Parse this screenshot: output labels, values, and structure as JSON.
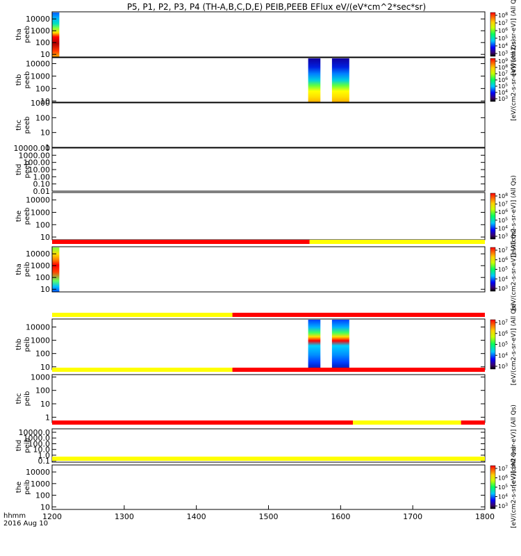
{
  "chart_data": {
    "type": "heatmap",
    "title": "P5, P1, P2, P3, P4 (TH-A,B,C,D,E) PEIB,PEEB EFlux eV/(eV*cm^2*sec*sr)",
    "x_ticks": [
      1200,
      1300,
      1400,
      1500,
      1600,
      1700,
      1800
    ],
    "x_range": [
      1200,
      1800
    ],
    "x_label_line1": "hhmm",
    "x_label_line2": "2016 Aug 10",
    "panels": [
      {
        "id": "tha-peeb",
        "label_line1": "tha",
        "label_line2": "peeb",
        "ylog": true,
        "ylim": [
          6,
          40000
        ],
        "y_ticks": [
          "10000",
          "1000",
          "100",
          "10"
        ],
        "y_tick_values": [
          10000,
          1000,
          100,
          10
        ],
        "data_blocks": [
          {
            "x_start": 1200,
            "x_end": 1210,
            "profile": "tha_peeb"
          }
        ],
        "colorbar": {
          "ticks": [
            "10^8",
            "10^7",
            "10^6",
            "10^5",
            "10^4",
            "10^3"
          ],
          "label": "[eV/(cm2-s-sr-eV)] (All Qs)"
        }
      },
      {
        "id": "thb-peeb",
        "label_line1": "thb",
        "label_line2": "peeb",
        "ylog": true,
        "ylim": [
          8,
          30000
        ],
        "y_ticks": [
          "10000",
          "1000",
          "100",
          "10"
        ],
        "y_tick_values": [
          10000,
          1000,
          100,
          10
        ],
        "data_blocks": [
          {
            "x_start": 1555,
            "x_end": 1572,
            "profile": "thb_peeb"
          },
          {
            "x_start": 1588,
            "x_end": 1612,
            "profile": "thb_peeb"
          }
        ],
        "colorbar": {
          "ticks": [
            "10^9",
            "10^8",
            "10^7",
            "10^6",
            "10^5",
            "10^4",
            "10^3"
          ],
          "label": "[eV/(cm2-s-sr-eV)] (All Qs)"
        }
      },
      {
        "id": "thc-peeb",
        "label_line1": "thc",
        "label_line2": "peeb",
        "ylog": true,
        "ylim": [
          1,
          1000
        ],
        "y_ticks": [
          "1000",
          "100",
          "10",
          "1"
        ],
        "y_tick_values": [
          1000,
          100,
          10,
          1
        ],
        "data_blocks": []
      },
      {
        "id": "thd-peeb",
        "label_line1": "thd",
        "label_line2": "peeb",
        "ylog": true,
        "ylim": [
          0.01,
          10000
        ],
        "y_ticks": [
          "10000.00",
          "1000.00",
          "100.00",
          "10.00",
          "1.00",
          "0.10",
          "0.01"
        ],
        "y_tick_values": [
          10000,
          1000,
          100,
          10,
          1,
          0.1,
          0.01
        ],
        "data_blocks": []
      },
      {
        "id": "the-peeb",
        "label_line1": "the",
        "label_line2": "peeb",
        "ylog": true,
        "ylim": [
          6,
          40000
        ],
        "y_ticks": [
          "10000",
          "1000",
          "100",
          "10"
        ],
        "y_tick_values": [
          10000,
          1000,
          100,
          10
        ],
        "data_blocks": [],
        "colorbar": {
          "ticks": [
            "10^8",
            "10^7",
            "10^6",
            "10^5",
            "10^4",
            "10^3"
          ],
          "label": "[eV/(cm2-s-sr-eV)] (All Qs)"
        },
        "mode_bar": [
          {
            "x_start": 1200,
            "x_end": 1557,
            "color": "#ff0000"
          },
          {
            "x_start": 1557,
            "x_end": 1800,
            "color": "#ffff00"
          }
        ]
      },
      {
        "id": "tha-peib",
        "label_line1": "tha",
        "label_line2": "peib",
        "ylog": true,
        "ylim": [
          6,
          40000
        ],
        "y_ticks": [
          "10000",
          "1000",
          "100",
          "10"
        ],
        "y_tick_values": [
          10000,
          1000,
          100,
          10
        ],
        "data_blocks": [
          {
            "x_start": 1200,
            "x_end": 1210,
            "profile": "tha_peib"
          }
        ],
        "colorbar": {
          "ticks": [
            "10^7",
            "10^6",
            "10^5",
            "10^4",
            "10^3"
          ],
          "label": "[eV/(cm2-s-sr-eV)] (All Qs)"
        },
        "mode_bar": [
          {
            "x_start": 1200,
            "x_end": 1450,
            "color": "#ffff00"
          },
          {
            "x_start": 1450,
            "x_end": 1800,
            "color": "#ff0000"
          }
        ]
      },
      {
        "id": "thb-peib",
        "label_line1": "thb",
        "label_line2": "peib",
        "ylog": true,
        "ylim": [
          6,
          40000
        ],
        "y_ticks": [
          "10000",
          "1000",
          "100",
          "10"
        ],
        "y_tick_values": [
          10000,
          1000,
          100,
          10
        ],
        "data_blocks": [
          {
            "x_start": 1555,
            "x_end": 1572,
            "profile": "thb_peib"
          },
          {
            "x_start": 1588,
            "x_end": 1612,
            "profile": "thb_peib"
          }
        ],
        "colorbar": {
          "ticks": [
            "10^7",
            "10^6",
            "10^5",
            "10^4",
            "10^3"
          ],
          "label": "[eV/(cm2-s-sr-eV)] (All Qs)"
        },
        "mode_bar": [
          {
            "x_start": 1200,
            "x_end": 1450,
            "color": "#ffff00"
          },
          {
            "x_start": 1450,
            "x_end": 1800,
            "color": "#ff0000"
          }
        ]
      },
      {
        "id": "thc-peib",
        "label_line1": "thc",
        "label_line2": "peib",
        "ylog": true,
        "ylim": [
          0.4,
          1500
        ],
        "y_ticks": [
          "1000",
          "100",
          "10",
          "1"
        ],
        "y_tick_values": [
          1000,
          100,
          10,
          1
        ],
        "data_blocks": [],
        "mode_bar": [
          {
            "x_start": 1200,
            "x_end": 1617,
            "color": "#ff0000"
          },
          {
            "x_start": 1617,
            "x_end": 1767,
            "color": "#ffff00"
          },
          {
            "x_start": 1767,
            "x_end": 1800,
            "color": "#ff0000"
          }
        ]
      },
      {
        "id": "thd-peib",
        "label_line1": "thd",
        "label_line2": "peib",
        "ylog": true,
        "ylim": [
          0.06,
          40000
        ],
        "y_ticks": [
          "10000.0",
          "1000.0",
          "100.0",
          "10.0",
          "1.0",
          "0.1"
        ],
        "y_tick_values": [
          10000,
          1000,
          100,
          10,
          1,
          0.1
        ],
        "data_blocks": [],
        "colorbar": {
          "ticks": [],
          "label": "[eV/(cm2-s-sr-eV)] (All Qs)"
        },
        "mode_bar": [
          {
            "x_start": 1200,
            "x_end": 1800,
            "color": "#ffff00"
          }
        ]
      },
      {
        "id": "the-peib",
        "label_line1": "the",
        "label_line2": "peib",
        "ylog": true,
        "ylim": [
          6,
          40000
        ],
        "y_ticks": [
          "10000",
          "1000",
          "100",
          "10"
        ],
        "y_tick_values": [
          10000,
          1000,
          100,
          10
        ],
        "data_blocks": [],
        "colorbar": {
          "ticks": [
            "10^7",
            "10^6",
            "10^5",
            "10^4",
            "10^3"
          ],
          "label": "[eV/(cm2-s-sr-eV)] (All Qs)"
        }
      }
    ]
  }
}
